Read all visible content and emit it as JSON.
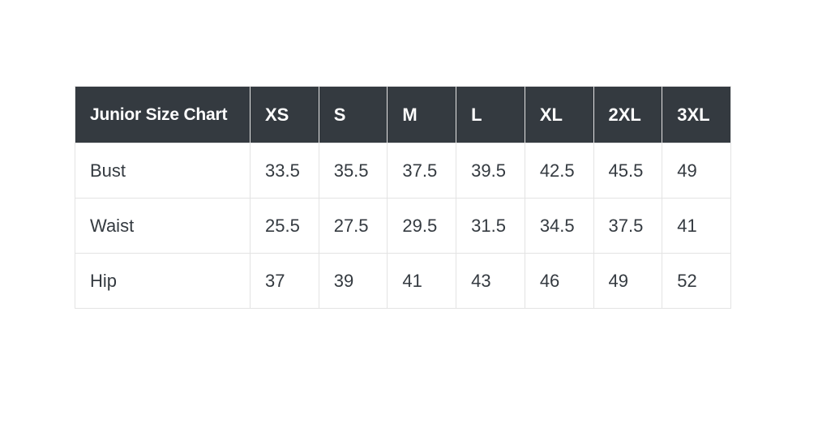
{
  "chart_data": {
    "type": "table",
    "title": "Junior Size Chart",
    "columns": [
      "Junior Size Chart",
      "XS",
      "S",
      "M",
      "L",
      "XL",
      "2XL",
      "3XL"
    ],
    "rows": [
      {
        "label": "Bust",
        "values": [
          "33.5",
          "35.5",
          "37.5",
          "39.5",
          "42.5",
          "45.5",
          "49"
        ]
      },
      {
        "label": "Waist",
        "values": [
          "25.5",
          "27.5",
          "29.5",
          "31.5",
          "34.5",
          "37.5",
          "41"
        ]
      },
      {
        "label": "Hip",
        "values": [
          "37",
          "39",
          "41",
          "43",
          "46",
          "49",
          "52"
        ]
      }
    ],
    "layout": {
      "header_style": "dark-solid",
      "grid": true,
      "zebra_striping": false,
      "text_align": "left"
    }
  },
  "colors": {
    "header_bg": "#343a40",
    "header_text": "#ffffff",
    "body_text": "#343a40",
    "border": "#e3e3e3",
    "row_bg": "#ffffff",
    "page_bg": "#ffffff"
  }
}
